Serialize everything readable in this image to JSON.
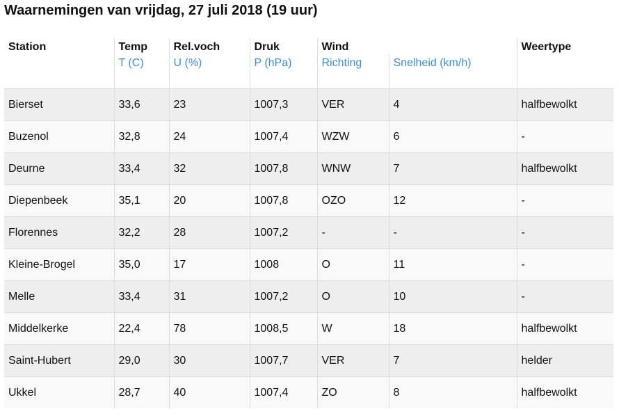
{
  "title": "Waarnemingen van vrijdag, 27 juli 2018 (19 uur)",
  "header": {
    "station": "Station",
    "temp": "Temp",
    "temp_unit": "T (C)",
    "relvoch": "Rel.voch",
    "relvoch_unit": "U (%)",
    "druk": "Druk",
    "druk_unit": "P (hPa)",
    "wind": "Wind",
    "wind_richting": "Richting",
    "wind_snelheid": "Snelheid (km/h)",
    "weertype": "Weertype"
  },
  "rows": [
    {
      "station": "Bierset",
      "temp": "33,6",
      "rv": "23",
      "druk": "1007,3",
      "richting": "VER",
      "snelheid": "4",
      "weertype": "halfbewolkt"
    },
    {
      "station": "Buzenol",
      "temp": "32,8",
      "rv": "24",
      "druk": "1007,4",
      "richting": "WZW",
      "snelheid": "6",
      "weertype": "-"
    },
    {
      "station": "Deurne",
      "temp": "33,4",
      "rv": "32",
      "druk": "1007,8",
      "richting": "WNW",
      "snelheid": "7",
      "weertype": "halfbewolkt"
    },
    {
      "station": "Diepenbeek",
      "temp": "35,1",
      "rv": "20",
      "druk": "1007,8",
      "richting": "OZO",
      "snelheid": "12",
      "weertype": "-"
    },
    {
      "station": "Florennes",
      "temp": "32,2",
      "rv": "28",
      "druk": "1007,2",
      "richting": "-",
      "snelheid": "-",
      "weertype": "-"
    },
    {
      "station": "Kleine-Brogel",
      "temp": "35,0",
      "rv": "17",
      "druk": "1008",
      "richting": "O",
      "snelheid": "11",
      "weertype": "-"
    },
    {
      "station": "Melle",
      "temp": "33,4",
      "rv": "31",
      "druk": "1007,2",
      "richting": "O",
      "snelheid": "10",
      "weertype": "-"
    },
    {
      "station": "Middelkerke",
      "temp": "22,4",
      "rv": "78",
      "druk": "1008,5",
      "richting": "W",
      "snelheid": "18",
      "weertype": "halfbewolkt"
    },
    {
      "station": "Saint-Hubert",
      "temp": "29,0",
      "rv": "30",
      "druk": "1007,7",
      "richting": "VER",
      "snelheid": "7",
      "weertype": "helder"
    },
    {
      "station": "Ukkel",
      "temp": "28,7",
      "rv": "40",
      "druk": "1007,4",
      "richting": "ZO",
      "snelheid": "8",
      "weertype": "halfbewolkt"
    }
  ],
  "colors": {
    "unit_text": "#3a8fd9",
    "row_odd": "#eeeeee",
    "row_even": "#f9f9f9"
  }
}
